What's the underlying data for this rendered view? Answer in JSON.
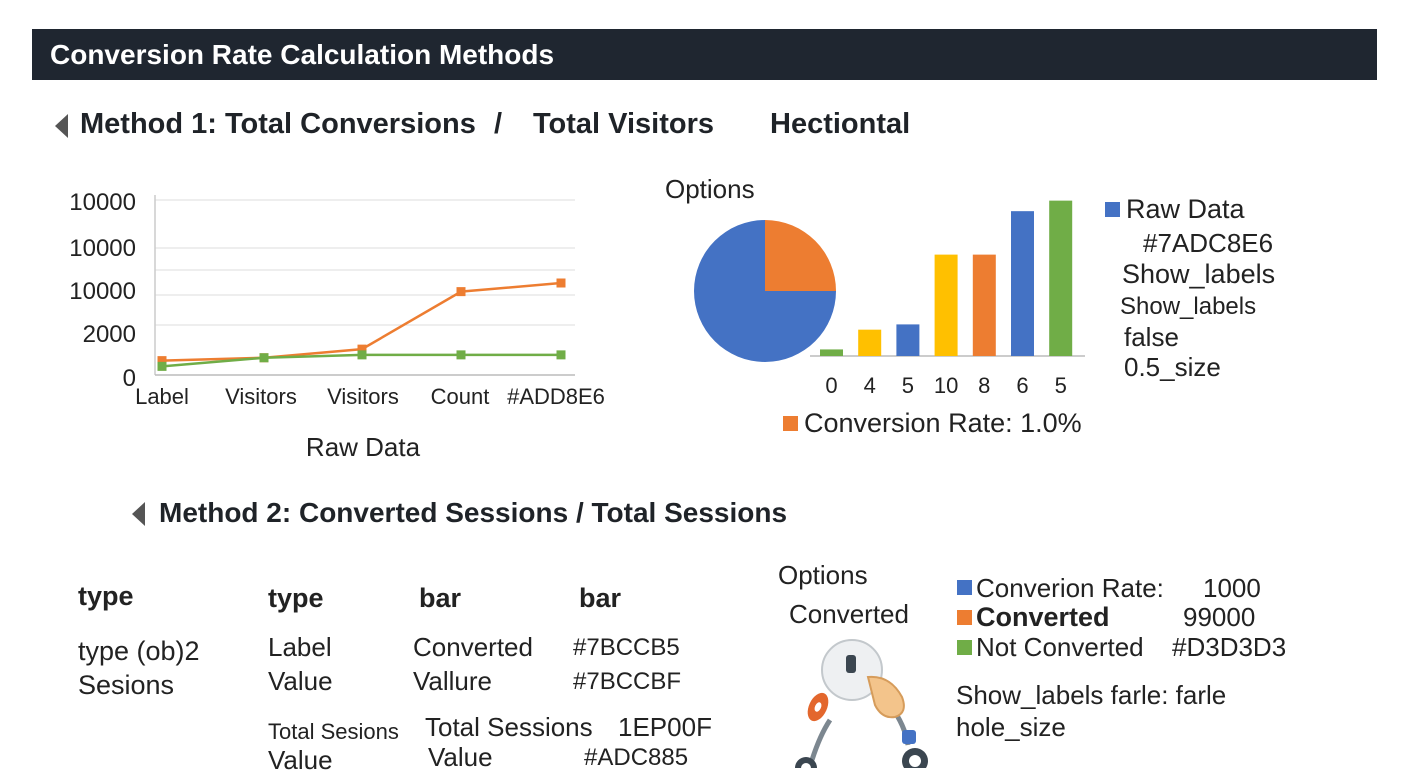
{
  "header": {
    "title": "Conversion Rate Calculation Methods"
  },
  "method1": {
    "heading": "Method 1: Total Conversions",
    "sep": "/",
    "heading_part2": "Total Visitors",
    "extra": "Hectiontal"
  },
  "method2": {
    "heading": "Method 2: Converted Sessions / Total Sessions"
  },
  "chart_data": [
    {
      "type": "line",
      "ytick_labels": [
        "10000",
        "10000",
        "10000",
        "2000",
        "0"
      ],
      "categories": [
        "Label",
        "Visitors",
        "Visitors",
        "Count",
        "#ADD8E6"
      ],
      "xlabel": "Raw Data",
      "series": [
        {
          "color": "#ED7D31",
          "values": [
            0.5,
            0.6,
            0.9,
            2.9,
            3.2
          ],
          "x": [
            0,
            1,
            2,
            3,
            4
          ]
        },
        {
          "color": "#70AD47",
          "values": [
            0.3,
            0.6,
            0.7,
            0.7,
            0.7
          ],
          "x": [
            0,
            1,
            2,
            3,
            4
          ]
        }
      ],
      "ylim": [
        0,
        4
      ],
      "grid": true
    },
    {
      "type": "pie",
      "title": "Options",
      "slices": [
        {
          "value": 75,
          "color": "#4472C4"
        },
        {
          "value": 25,
          "color": "#ED7D31"
        }
      ]
    },
    {
      "type": "bar",
      "categories": [
        "0",
        "4",
        "5",
        "10",
        "8",
        "6",
        "5"
      ],
      "values": [
        0.5,
        2,
        2.4,
        7.7,
        7.7,
        11,
        11.8
      ],
      "colors": [
        "#70AD47",
        "#FFC000",
        "#4472C4",
        "#FFC000",
        "#ED7D31",
        "#4472C4",
        "#70AD47"
      ],
      "ylim": [
        0,
        12
      ],
      "legend": [
        {
          "label": "Raw Data",
          "color": "#4472C4"
        },
        {
          "label": "Conversion Rate: 1.0%",
          "color": "#ED7D31"
        }
      ],
      "options_text": [
        "#7ADC8E6",
        "Show_labels",
        "Show_labels",
        "false",
        "0.5_size"
      ]
    },
    {
      "type": "table",
      "header": [
        "type",
        "type",
        "bar",
        "bar"
      ],
      "left_label": [
        "type (ob)2",
        "Sesions"
      ],
      "rows": [
        [
          "Label",
          "Converted",
          "#7BCCB5"
        ],
        [
          "Value",
          "Vallure",
          "#7BCCBF"
        ]
      ],
      "rows2": [
        [
          "Total Sesions",
          "Total Sessions",
          "1EP00F"
        ],
        [
          "Value",
          "Value",
          "#ADC885"
        ]
      ]
    },
    {
      "type": "pie",
      "title": "Options",
      "subtitle": "Converted",
      "legend": [
        {
          "label": "Converion Rate:",
          "value": "1000",
          "color": "#4472C4"
        },
        {
          "label": "Converted",
          "value": "99000",
          "color": "#ED7D31"
        },
        {
          "label": "Not Converted",
          "value": "#D3D3D3",
          "color": "#70AD47"
        }
      ],
      "notes": [
        "Show_labels farle: farle",
        "hole_size"
      ]
    }
  ]
}
